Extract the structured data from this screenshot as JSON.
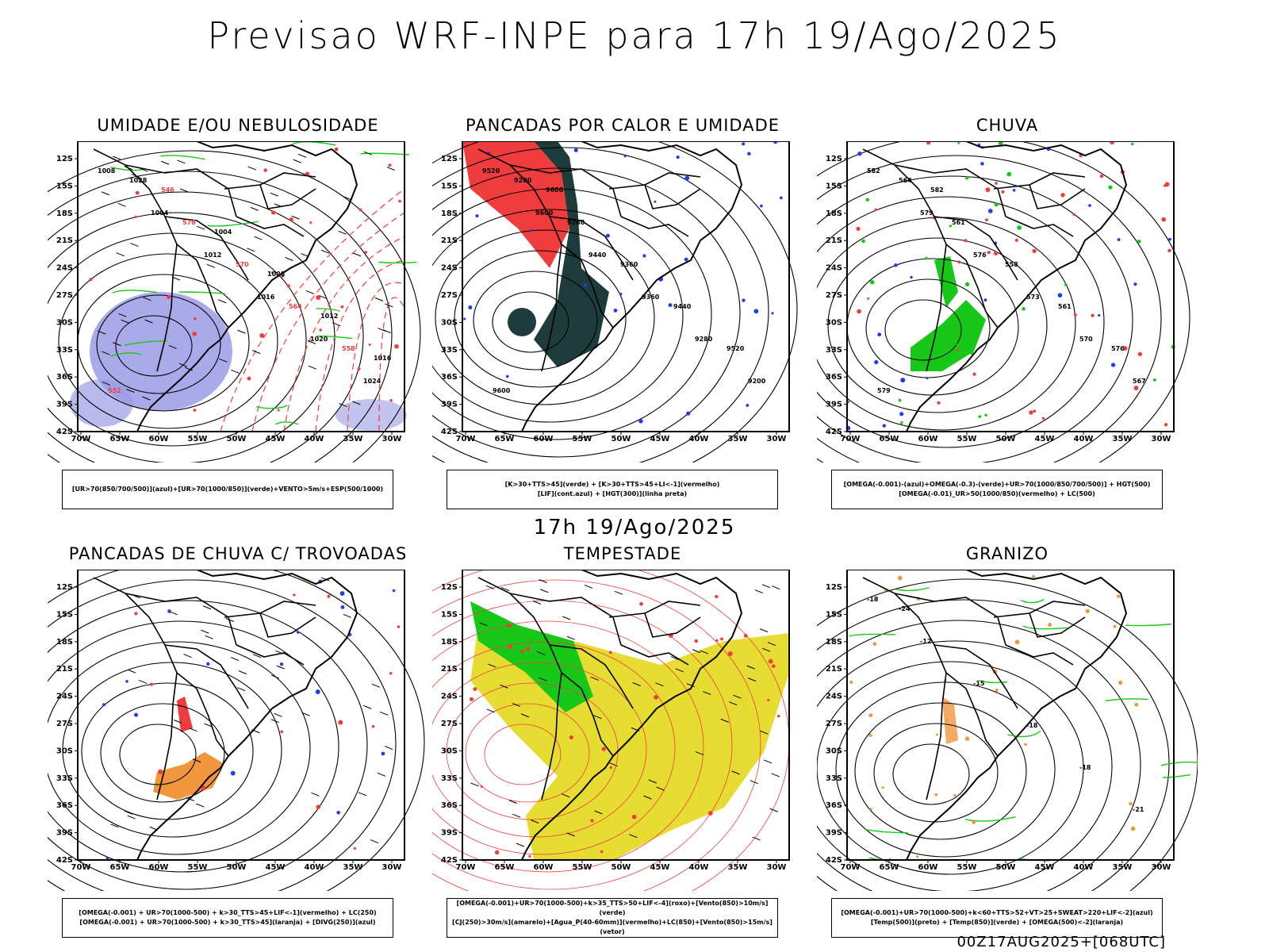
{
  "header": {
    "title": "Previsao WRF-INPE  para 17h 19/Ago/2025"
  },
  "middle": {
    "title": "17h 19/Ago/2025"
  },
  "footer": {
    "stamp": "00Z17AUG2025+[068UTC]"
  },
  "axes": {
    "lat_labels": [
      "12S",
      "15S",
      "18S",
      "21S",
      "24S",
      "27S",
      "30S",
      "33S",
      "36S",
      "39S",
      "42S"
    ],
    "lon_labels": [
      "70W",
      "65W",
      "60W",
      "55W",
      "50W",
      "45W",
      "40W",
      "35W",
      "30W"
    ]
  },
  "panels": [
    {
      "title": "UMIDADE E/OU NEBULOSIDADE",
      "legend": [
        "[UR>70(850/700/500)](azul)+[UR>70(1000/850)](verde)+VENTO>5m/s+ESP(500/1000)"
      ],
      "labels": [
        "1008",
        "1004",
        "1012",
        "1016",
        "1020",
        "1024",
        "1028",
        "576",
        "570",
        "564",
        "558",
        "552",
        "546",
        "1004",
        "1008",
        "1012",
        "1016"
      ]
    },
    {
      "title": "PANCADAS POR CALOR E UMIDADE",
      "legend": [
        "[K>30+TTS>45](verde) + [K>30+TTS>45+LI<-1](vermelho)",
        "[LIF](cont.azul) + [HGT(300)](linha preta)"
      ],
      "labels": [
        "9520",
        "9600",
        "9440",
        "9360",
        "9280",
        "9200",
        "9200",
        "9280",
        "9360",
        "9440",
        "9520",
        "9600",
        "9600"
      ]
    },
    {
      "title": "CHUVA",
      "legend": [
        "[OMEGA(-0.001)-(azul)+OMEGA(-0.3)-(verde)+UR>70(1000/850/700/500)] + HGT(500)",
        "[OMEGA(-0.01)_UR>50(1000/850)(vermelho) + LC(500)"
      ],
      "labels": [
        "582",
        "579",
        "576",
        "573",
        "570",
        "567",
        "564",
        "561",
        "558",
        "561",
        "576",
        "579",
        "582"
      ]
    },
    {
      "title": "PANCADAS DE CHUVA C/ TROVOADAS",
      "legend": [
        "[OMEGA(-0.001) + UR>70(1000-500) + k>30_TTS>45+LIF<-1](vermelho) + LC(250)",
        "[OMEGA(-0.001) + UR>70(1000-500) + k>30_TTS>45](laranja) + [DIVG(250)](azul)"
      ],
      "labels": []
    },
    {
      "title": "TEMPESTADE",
      "legend": [
        "[OMEGA(-0.001)+UR>70(1000-500)+k>35_TTS>50+LIF<-4](roxo)+[Vento(850)>10m/s](verde)",
        "[CJ(250)>30m/s](amarelo)+[Agua_P(40-60mm)](vermelho)+LC(850)+[Vento(850)>15m/s](vetor)"
      ],
      "labels": []
    },
    {
      "title": "GRANIZO",
      "legend": [
        "[OMEGA(-0.001)+UR>70(1000-500)+k<60+TTS>52+VT>25+SWEAT>220+LIF<-2](azul)",
        "[Temp(500)](preto) + [Temp(850)](verde) + [OMEGA(500)<-2](laranja)"
      ],
      "labels": [
        "-18",
        "-12",
        "-15",
        "-18",
        "-18",
        "-21",
        "-24"
      ]
    }
  ],
  "colors": {
    "blue_fill": "#9b9be6",
    "green": "#18c818",
    "red": "#f03c3c",
    "dark_teal": "#1e3c3c",
    "yellow": "#e6dc32",
    "orange": "#f0963c",
    "blue": "#1e3cf0"
  }
}
